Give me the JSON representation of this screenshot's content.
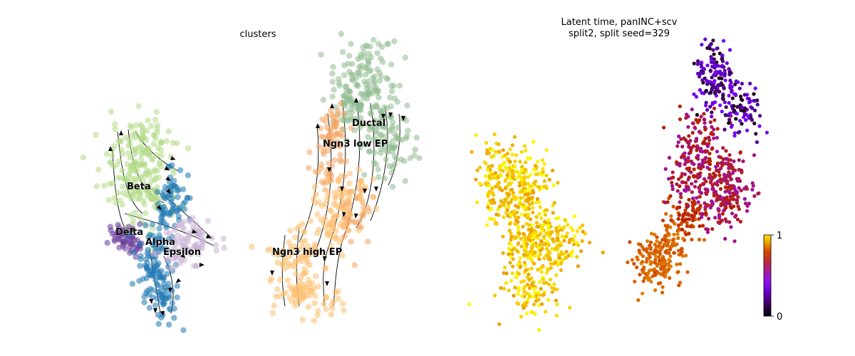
{
  "chart_data": [
    {
      "type": "scatter",
      "subtype": "umap-velocity-stream",
      "title": "clusters",
      "xlabel": "",
      "ylabel": "",
      "axes_visible": false,
      "grid": false,
      "legend": "on data",
      "series": [
        {
          "name": "Beta",
          "color": "#b2db87",
          "n_points": 220
        },
        {
          "name": "Delta",
          "color": "#6a3d9a",
          "n_points": 60
        },
        {
          "name": "Alpha",
          "color": "#1f78b4",
          "n_points": 200
        },
        {
          "name": "Epsilon",
          "color": "#cab2d6",
          "n_points": 90
        },
        {
          "name": "Ductal",
          "color": "#8fbc8f",
          "n_points": 260
        },
        {
          "name": "Ngn3 low EP",
          "color": "#f4a460",
          "n_points": 120
        },
        {
          "name": "Ngn3 high EP",
          "color": "#fdbf6f",
          "n_points": 240
        }
      ],
      "streamlines": true
    },
    {
      "type": "scatter",
      "subtype": "umap-continuous",
      "title": "Latent time, panINC+scv\nsplit2, split seed=329",
      "title_lines": [
        "Latent time, panINC+scv",
        "split2, split seed=329"
      ],
      "xlabel": "",
      "ylabel": "",
      "axes_visible": false,
      "grid": false,
      "colormap": "gnuplot",
      "colorbar": {
        "min": 0,
        "max": 1,
        "ticks": [
          "1",
          "0"
        ],
        "placement": "right"
      },
      "value_ranges": [
        {
          "group": "left cluster",
          "latent_time": [
            0.85,
            1.0
          ]
        },
        {
          "group": "right lower cluster",
          "latent_time": [
            0.65,
            0.8
          ]
        },
        {
          "group": "right middle",
          "latent_time": [
            0.4,
            0.55
          ]
        },
        {
          "group": "right upper",
          "latent_time": [
            0.0,
            0.3
          ]
        }
      ]
    }
  ],
  "colors": {
    "Beta": "#b2db87",
    "Delta": "#6a3d9a",
    "Alpha": "#1f78b4",
    "Epsilon": "#cab2d6",
    "Ductal": "#8fbc8f",
    "Ngn3 low EP": "#f4a460",
    "Ngn3 high EP": "#fdbf6f"
  }
}
